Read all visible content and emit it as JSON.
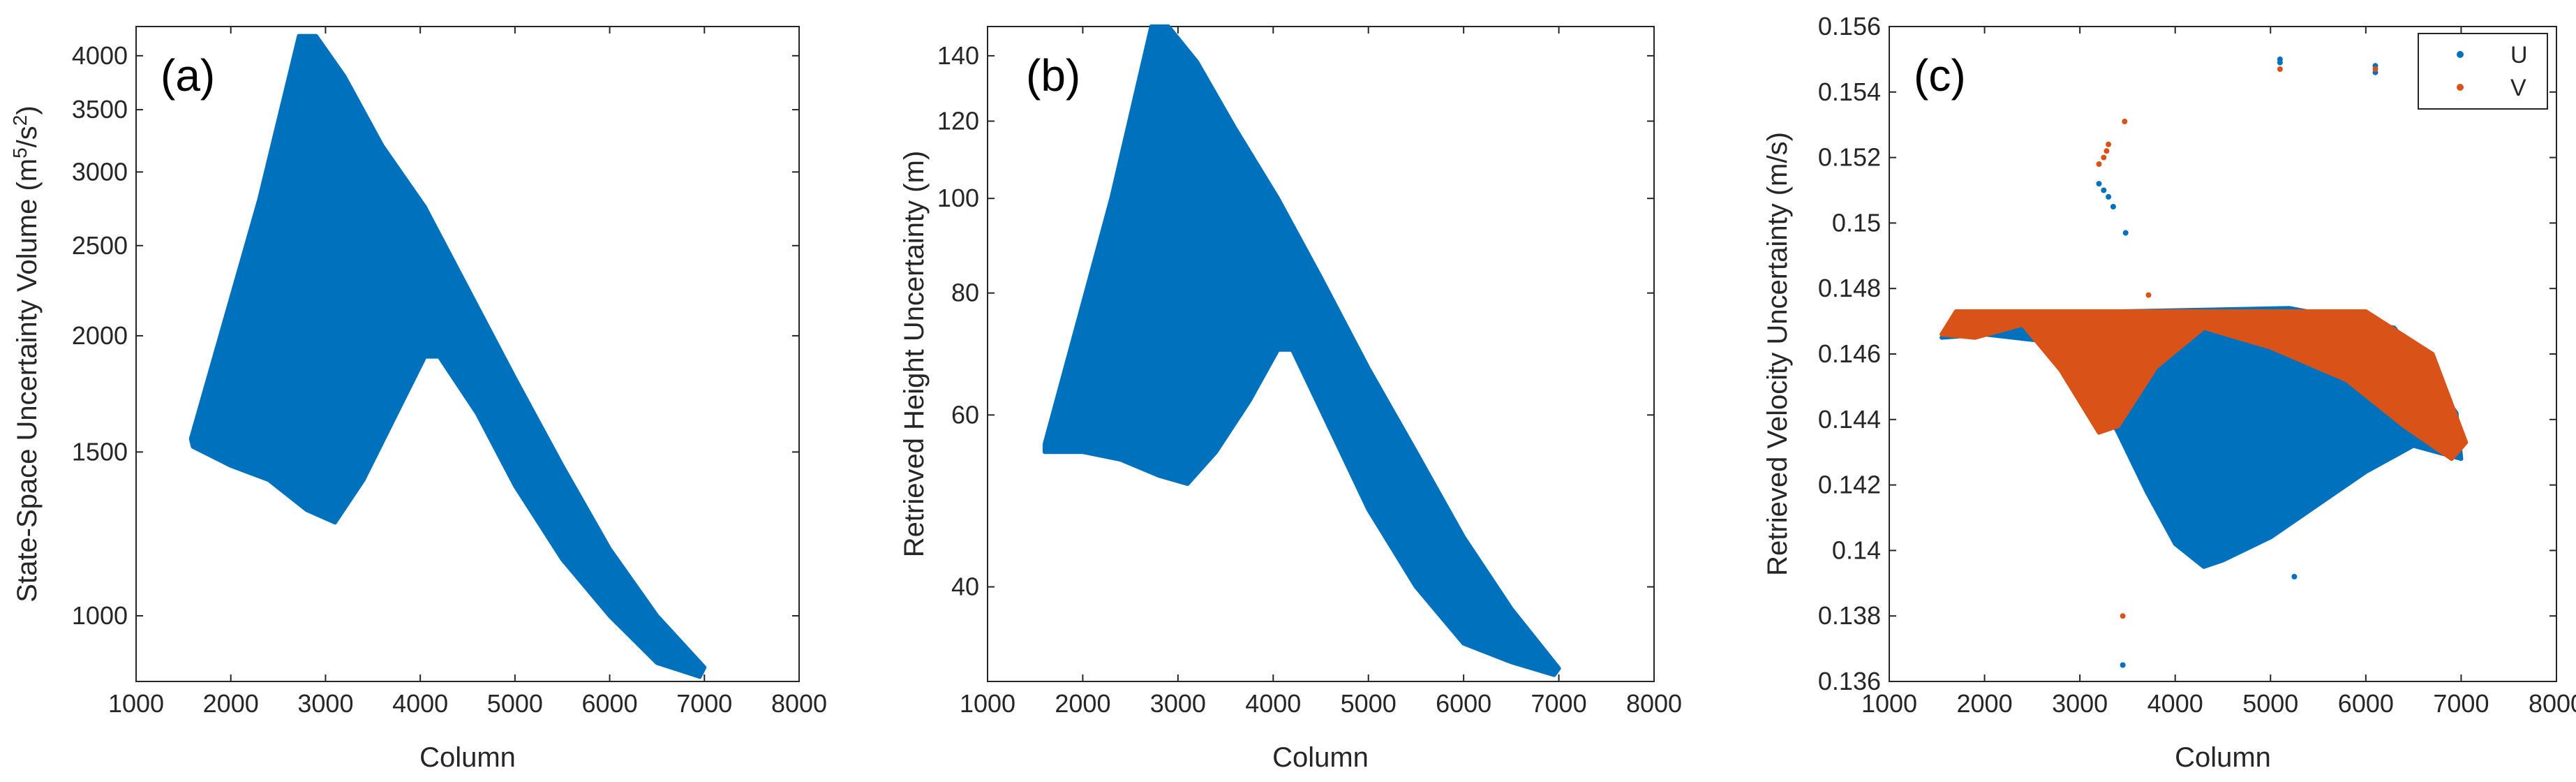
{
  "chart_data": [
    {
      "type": "scatter",
      "panel_label": "(a)",
      "xlabel": "Column",
      "ylabel": "State-Space Uncertainty Volume (m⁵/s²)",
      "ylabel_parts": {
        "base": "State-Space Uncertainty Volume (m",
        "sup1": "5",
        "mid": "/s",
        "sup2": "2",
        "end": ")"
      },
      "xlim": [
        1000,
        8000
      ],
      "ylim": [
        850,
        4300
      ],
      "yscale": "log",
      "xticks": [
        1000,
        2000,
        3000,
        4000,
        5000,
        6000,
        7000,
        8000
      ],
      "yticks": [
        1000,
        1500,
        2000,
        2500,
        3000,
        3500,
        4000
      ],
      "grid": false,
      "series": [
        {
          "color": "#0072BD",
          "outline": [
            [
              1580,
              1550
            ],
            [
              2300,
              2800
            ],
            [
              2720,
              4200
            ],
            [
              2900,
              4200
            ],
            [
              3200,
              3800
            ],
            [
              3600,
              3200
            ],
            [
              4050,
              2750
            ],
            [
              4500,
              2250
            ],
            [
              5000,
              1800
            ],
            [
              5500,
              1450
            ],
            [
              6000,
              1180
            ],
            [
              6500,
              1000
            ],
            [
              7000,
              880
            ],
            [
              6950,
              860
            ],
            [
              6500,
              890
            ],
            [
              6000,
              1000
            ],
            [
              5500,
              1150
            ],
            [
              5000,
              1380
            ],
            [
              4600,
              1650
            ],
            [
              4200,
              1900
            ],
            [
              4050,
              1900
            ],
            [
              3750,
              1650
            ],
            [
              3400,
              1400
            ],
            [
              3100,
              1260
            ],
            [
              2800,
              1300
            ],
            [
              2400,
              1400
            ],
            [
              2000,
              1450
            ],
            [
              1600,
              1520
            ]
          ]
        }
      ]
    },
    {
      "type": "scatter",
      "panel_label": "(b)",
      "xlabel": "Column",
      "ylabel": "Retrieved Height Uncertainty (m)",
      "xlim": [
        1000,
        8000
      ],
      "ylim": [
        32,
        150
      ],
      "yscale": "log",
      "xticks": [
        1000,
        2000,
        3000,
        4000,
        5000,
        6000,
        7000,
        8000
      ],
      "yticks": [
        40,
        60,
        80,
        100,
        120,
        140
      ],
      "grid": false,
      "series": [
        {
          "color": "#0072BD",
          "outline": [
            [
              1600,
              56
            ],
            [
              2300,
              100
            ],
            [
              2720,
              150
            ],
            [
              2900,
              150
            ],
            [
              3200,
              138
            ],
            [
              3600,
              118
            ],
            [
              4050,
              100
            ],
            [
              4500,
              83
            ],
            [
              5000,
              67
            ],
            [
              5500,
              55
            ],
            [
              6000,
              45
            ],
            [
              6500,
              38
            ],
            [
              7000,
              33
            ],
            [
              6950,
              32.5
            ],
            [
              6500,
              33.5
            ],
            [
              6000,
              35
            ],
            [
              5500,
              40
            ],
            [
              5000,
              48
            ],
            [
              4600,
              58
            ],
            [
              4200,
              70
            ],
            [
              4050,
              70
            ],
            [
              3750,
              62
            ],
            [
              3400,
              55
            ],
            [
              3100,
              51
            ],
            [
              2800,
              52
            ],
            [
              2400,
              54
            ],
            [
              2000,
              55
            ],
            [
              1600,
              55
            ]
          ]
        }
      ]
    },
    {
      "type": "scatter",
      "panel_label": "(c)",
      "xlabel": "Column",
      "ylabel": "Retrieved Velocity Uncertainty (m/s)",
      "xlim": [
        1000,
        8000
      ],
      "ylim": [
        0.136,
        0.156
      ],
      "yscale": "linear",
      "xticks": [
        1000,
        2000,
        3000,
        4000,
        5000,
        6000,
        7000,
        8000
      ],
      "yticks": [
        "0.136",
        "0.138",
        "0.14",
        "0.142",
        "0.144",
        "0.146",
        "0.148",
        "0.15",
        "0.152",
        "0.154",
        "0.156"
      ],
      "grid": false,
      "legend": {
        "placement": "top-right",
        "entries": [
          "U",
          "V"
        ]
      },
      "series": [
        {
          "name": "U",
          "color": "#0072BD",
          "outline": [
            [
              1550,
              0.1465
            ],
            [
              1700,
              0.1472
            ],
            [
              5200,
              0.1474
            ],
            [
              6300,
              0.1468
            ],
            [
              6950,
              0.1442
            ],
            [
              7000,
              0.1428
            ],
            [
              6500,
              0.1432
            ],
            [
              6000,
              0.1424
            ],
            [
              5500,
              0.1414
            ],
            [
              5000,
              0.1404
            ],
            [
              4500,
              0.1397
            ],
            [
              4300,
              0.1395
            ],
            [
              4000,
              0.1402
            ],
            [
              3700,
              0.1418
            ],
            [
              3400,
              0.1436
            ],
            [
              3100,
              0.1452
            ],
            [
              2600,
              0.1464
            ],
            [
              2000,
              0.1466
            ]
          ],
          "outliers": [
            [
              3250,
              0.151
            ],
            [
              3350,
              0.1505
            ],
            [
              3300,
              0.1508
            ],
            [
              3200,
              0.1512
            ],
            [
              3480,
              0.1497
            ],
            [
              5100,
              0.155
            ],
            [
              5100,
              0.1549
            ],
            [
              6100,
              0.1548
            ],
            [
              6100,
              0.1546
            ],
            [
              5250,
              0.1392
            ],
            [
              3450,
              0.1365
            ]
          ]
        },
        {
          "name": "V",
          "color": "#D95319",
          "outline": [
            [
              1550,
              0.1466
            ],
            [
              1700,
              0.1473
            ],
            [
              6000,
              0.1473
            ],
            [
              6700,
              0.146
            ],
            [
              7050,
              0.1433
            ],
            [
              6900,
              0.1428
            ],
            [
              6400,
              0.1438
            ],
            [
              5800,
              0.1452
            ],
            [
              5000,
              0.1462
            ],
            [
              4300,
              0.1468
            ],
            [
              3800,
              0.1456
            ],
            [
              3400,
              0.1438
            ],
            [
              3200,
              0.1436
            ],
            [
              2800,
              0.1455
            ],
            [
              2400,
              0.1469
            ],
            [
              1900,
              0.1465
            ]
          ],
          "outliers": [
            [
              3200,
              0.1518
            ],
            [
              3250,
              0.152
            ],
            [
              3280,
              0.1522
            ],
            [
              3300,
              0.1524
            ],
            [
              3470,
              0.1531
            ],
            [
              3720,
              0.1478
            ],
            [
              5100,
              0.1547
            ],
            [
              6100,
              0.1547
            ],
            [
              3450,
              0.138
            ]
          ]
        }
      ]
    }
  ]
}
